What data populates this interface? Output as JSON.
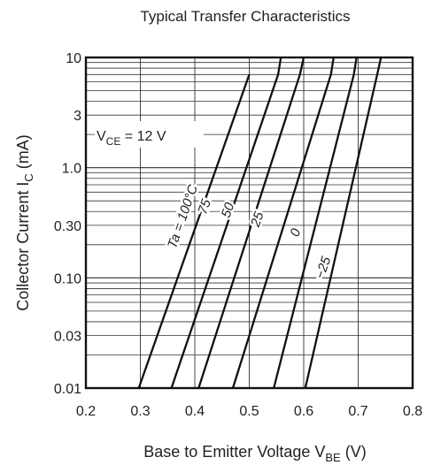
{
  "chart_data": {
    "type": "line",
    "title": "Typical Transfer Characteristics",
    "xlabel": {
      "main": "Base to Emitter Voltage  V",
      "sub": "BE",
      "unit": "  (V)"
    },
    "ylabel": {
      "main": "Collector Current  I",
      "sub": "C",
      "unit": "  (mA)"
    },
    "x_scale": "linear",
    "y_scale": "log",
    "xlim": [
      0.2,
      0.8
    ],
    "ylim": [
      0.01,
      10
    ],
    "xticks": [
      "0.2",
      "0.3",
      "0.4",
      "0.5",
      "0.6",
      "0.7",
      "0.8"
    ],
    "yticks": [
      {
        "value": 10,
        "label": "10"
      },
      {
        "value": 3,
        "label": "3"
      },
      {
        "value": 1,
        "label": "1.0"
      },
      {
        "value": 0.3,
        "label": "0.30"
      },
      {
        "value": 0.1,
        "label": "0.10"
      },
      {
        "value": 0.03,
        "label": "0.03"
      },
      {
        "value": 0.01,
        "label": "0.01"
      }
    ],
    "grid": true,
    "annotation": {
      "main": "V",
      "sub": "CE",
      "rest": " = 12 V"
    },
    "series": [
      {
        "name": "Ta = 100°C",
        "x": [
          0.297,
          0.5
        ],
        "y": [
          0.01,
          7
        ]
      },
      {
        "name": "75",
        "x": [
          0.357,
          0.553,
          0.553,
          0.558
        ],
        "y": [
          0.01,
          7,
          7,
          10
        ]
      },
      {
        "name": "50",
        "x": [
          0.407,
          0.593,
          0.6
        ],
        "y": [
          0.01,
          7,
          10
        ]
      },
      {
        "name": "25",
        "x": [
          0.47,
          0.65,
          0.655
        ],
        "y": [
          0.01,
          7,
          10
        ]
      },
      {
        "name": "0",
        "x": [
          0.545,
          0.692,
          0.697
        ],
        "y": [
          0.01,
          7,
          10
        ]
      },
      {
        "name": "−25",
        "x": [
          0.603,
          0.735,
          0.742
        ],
        "y": [
          0.01,
          7,
          10
        ]
      }
    ],
    "curve_labels": [
      {
        "text": "Ta = 100°C",
        "x": 0.385,
        "y": 0.35
      },
      {
        "text": "75",
        "x": 0.425,
        "y": 0.43
      },
      {
        "text": "50",
        "x": 0.468,
        "y": 0.4
      },
      {
        "text": "25",
        "x": 0.522,
        "y": 0.33
      },
      {
        "text": "0",
        "x": 0.592,
        "y": 0.25
      },
      {
        "text": "−25",
        "x": 0.643,
        "y": 0.12
      }
    ]
  }
}
